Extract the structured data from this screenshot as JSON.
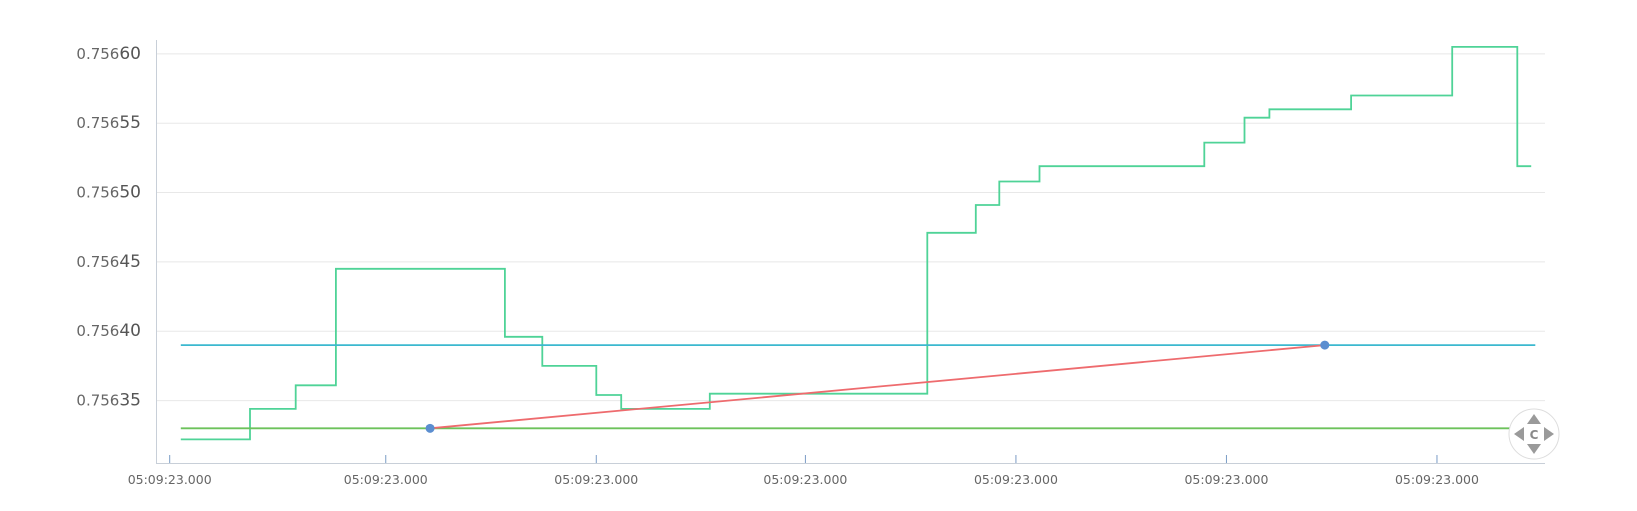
{
  "chart_data": {
    "type": "line",
    "title": "",
    "xlabel": "",
    "ylabel": "",
    "ylim": [
      0.756305,
      0.75661
    ],
    "yticks": [
      {
        "prefix": "0.756",
        "suffix": "35",
        "value": 0.75635
      },
      {
        "prefix": "0.756",
        "suffix": "40",
        "value": 0.7564
      },
      {
        "prefix": "0.756",
        "suffix": "45",
        "value": 0.75645
      },
      {
        "prefix": "0.756",
        "suffix": "50",
        "value": 0.7565
      },
      {
        "prefix": "0.756",
        "suffix": "55",
        "value": 0.75655
      },
      {
        "prefix": "0.756",
        "suffix": "60",
        "value": 0.7566
      }
    ],
    "xlim": [
      0,
      100
    ],
    "xticks": [
      {
        "label": "05:09:23.000",
        "value": 0.7
      },
      {
        "label": "05:09:23.000",
        "value": 16.3
      },
      {
        "label": "05:09:23.000",
        "value": 31.5
      },
      {
        "label": "05:09:23.000",
        "value": 46.6
      },
      {
        "label": "05:09:23.000",
        "value": 61.8
      },
      {
        "label": "05:09:23.000",
        "value": 77.0
      },
      {
        "label": "05:09:23.000",
        "value": 92.2
      }
    ],
    "grid": true,
    "series": [
      {
        "color": "#4fd397",
        "step": true,
        "points": [
          [
            1.5,
            0.756322
          ],
          [
            6.5,
            0.756322
          ],
          [
            6.5,
            0.756344
          ],
          [
            9.8,
            0.756344
          ],
          [
            9.8,
            0.756361
          ],
          [
            12.7,
            0.756361
          ],
          [
            12.7,
            0.756445
          ],
          [
            24.9,
            0.756445
          ],
          [
            24.9,
            0.756396
          ],
          [
            27.6,
            0.756396
          ],
          [
            27.6,
            0.756375
          ],
          [
            31.5,
            0.756375
          ],
          [
            31.5,
            0.756354
          ],
          [
            33.3,
            0.756354
          ],
          [
            33.3,
            0.756344
          ],
          [
            39.7,
            0.756344
          ],
          [
            39.7,
            0.756355
          ],
          [
            55.4,
            0.756355
          ],
          [
            55.4,
            0.756471
          ],
          [
            58.9,
            0.756471
          ],
          [
            58.9,
            0.756491
          ],
          [
            60.6,
            0.756491
          ],
          [
            60.6,
            0.756508
          ],
          [
            63.5,
            0.756508
          ],
          [
            63.5,
            0.756519
          ],
          [
            75.4,
            0.756519
          ],
          [
            75.4,
            0.756536
          ],
          [
            78.3,
            0.756536
          ],
          [
            78.3,
            0.756554
          ],
          [
            80.1,
            0.756554
          ],
          [
            80.1,
            0.75656
          ],
          [
            86.0,
            0.75656
          ],
          [
            86.0,
            0.75657
          ],
          [
            93.3,
            0.75657
          ],
          [
            93.3,
            0.756605
          ],
          [
            98.0,
            0.756605
          ],
          [
            98.0,
            0.756519
          ],
          [
            99.0,
            0.756519
          ]
        ]
      },
      {
        "color": "#3bb8cf",
        "points": [
          [
            1.5,
            0.75639
          ],
          [
            99.3,
            0.75639
          ]
        ]
      },
      {
        "color": "#6cc25b",
        "points": [
          [
            1.5,
            0.75633
          ],
          [
            99.3,
            0.75633
          ]
        ]
      },
      {
        "color": "#ee6b6e",
        "points": [
          [
            19.5,
            0.75633
          ],
          [
            84.1,
            0.75639
          ]
        ],
        "markers": true,
        "marker_color": "#5b8ed0"
      }
    ]
  },
  "navigator": {
    "icon": "pan-reset-icon",
    "label": "C"
  }
}
